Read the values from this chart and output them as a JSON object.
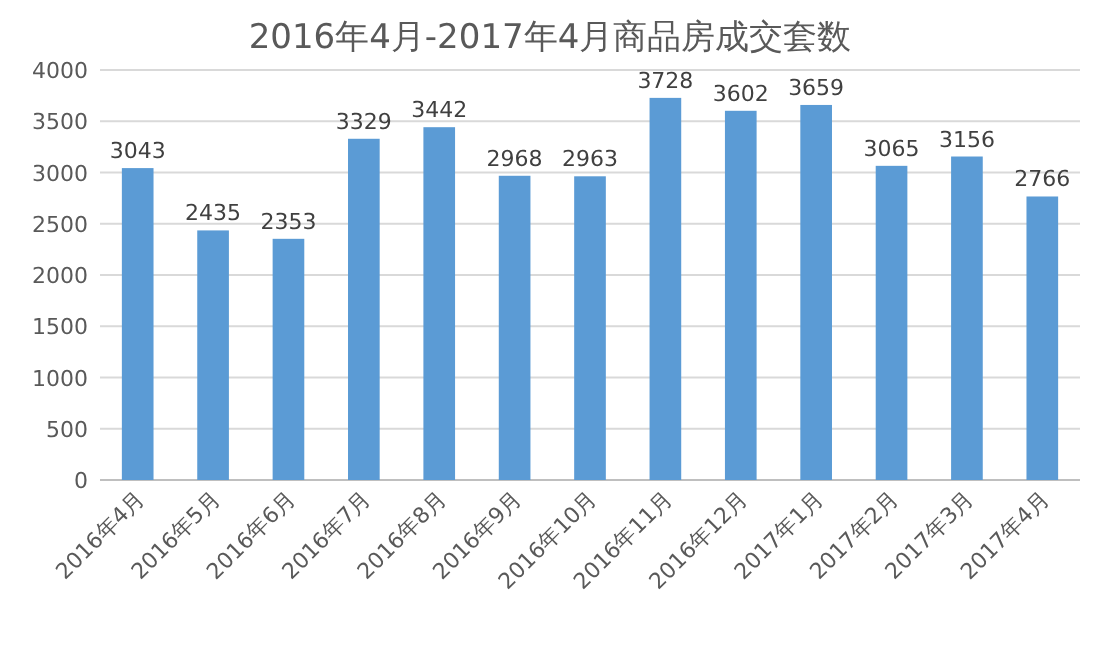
{
  "chart_data": {
    "type": "bar",
    "title": "2016年4月-2017年4月商品房成交套数",
    "categories": [
      "2016年4月",
      "2016年5月",
      "2016年6月",
      "2016年7月",
      "2016年8月",
      "2016年9月",
      "2016年10月",
      "2016年11月",
      "2016年12月",
      "2017年1月",
      "2017年2月",
      "2017年3月",
      "2017年4月"
    ],
    "values": [
      3043,
      2435,
      2353,
      3329,
      3442,
      2968,
      2963,
      3728,
      3602,
      3659,
      3065,
      3156,
      2766
    ],
    "color": "#5b9bd5",
    "ylim": [
      0,
      4000
    ],
    "yticks": [
      0,
      500,
      1000,
      1500,
      2000,
      2500,
      3000,
      3500,
      4000
    ],
    "grid": "y",
    "data_labels": true
  }
}
